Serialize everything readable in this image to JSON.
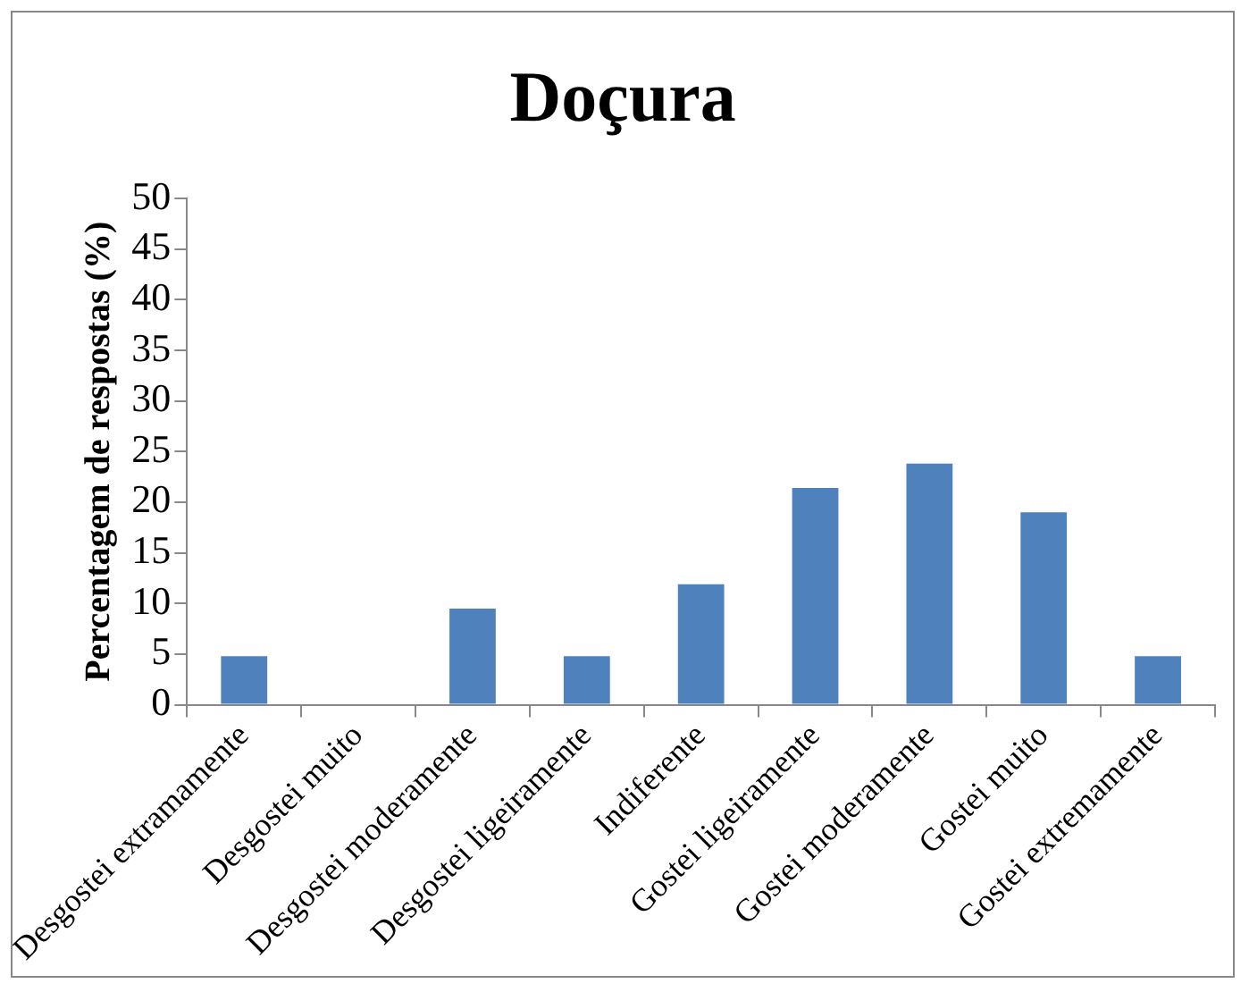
{
  "chart_data": {
    "type": "bar",
    "title": "Doçura",
    "ylabel": "Percentagem de respostas (%)",
    "categories": [
      "Desgostei extramamente",
      "Desgostei muito",
      "Desgostei moderamente",
      "Desgostei ligeiramente",
      "Indiferente",
      "Gostei ligeiramente",
      "Gostei moderamente",
      "Gostei muito",
      "Gostei extremamente"
    ],
    "values": [
      4.8,
      0,
      9.5,
      4.8,
      11.9,
      21.4,
      23.8,
      19.0,
      4.8
    ],
    "color": "#4f81bd",
    "ylim": [
      0,
      50
    ],
    "yticks": [
      0,
      5,
      10,
      15,
      20,
      25,
      30,
      35,
      40,
      45,
      50
    ],
    "legend": false
  }
}
